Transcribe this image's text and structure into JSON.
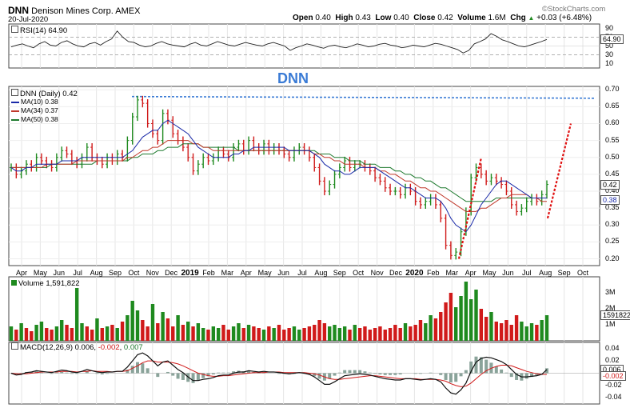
{
  "header": {
    "symbol": "DNN",
    "company": "Denison Mines Corp.",
    "exchange": "AMEX",
    "date": "20-Jul-2020",
    "open_label": "Open",
    "open": "0.40",
    "high_label": "High",
    "high": "0.43",
    "low_label": "Low",
    "low": "0.40",
    "close_label": "Close",
    "close": "0.42",
    "volume_label": "Volume",
    "volume": "1.6M",
    "chg_label": "Chg",
    "chg": "+0.03 (+6.48%)",
    "chg_icon": "up-triangle-icon",
    "brand": "©StockCharts.com"
  },
  "annotation": "DNN",
  "colors": {
    "up": "#1f8a1f",
    "down": "#d01a1a",
    "ma10": "#1a2aa8",
    "ma34": "#c0392b",
    "ma50": "#1e7a2e",
    "annotation": "#3a7bd5",
    "resistance": "#3a7bd5",
    "trendline": "#e01010"
  },
  "chart_data": [
    {
      "type": "line",
      "panel": "rsi",
      "title": "RSI(14) 64.90",
      "yticks": [
        "90",
        "70",
        "50",
        "30",
        "10"
      ],
      "ylim": [
        0,
        100
      ],
      "reference_lines": [
        70,
        30
      ],
      "last_value_label": "64.90",
      "series": [
        {
          "name": "RSI(14)",
          "values": [
            48,
            52,
            55,
            50,
            46,
            55,
            60,
            52,
            50,
            58,
            62,
            55,
            50,
            48,
            55,
            58,
            52,
            60,
            66,
            84,
            70,
            60,
            58,
            52,
            48,
            50,
            56,
            60,
            55,
            52,
            50,
            48,
            54,
            58,
            52,
            50,
            55,
            60,
            56,
            52,
            50,
            54,
            58,
            55,
            52,
            50,
            55,
            58,
            54,
            50,
            40,
            46,
            50,
            55,
            52,
            48,
            45,
            50,
            52,
            48,
            46,
            50,
            55,
            52,
            48,
            50,
            54,
            56,
            52,
            50,
            46,
            48,
            52,
            50,
            48,
            52,
            56,
            54,
            50,
            46,
            42,
            34,
            40,
            55,
            60,
            66,
            78,
            72,
            64,
            60,
            55,
            50,
            48,
            52,
            56,
            60,
            64.9
          ]
        }
      ]
    },
    {
      "type": "line",
      "panel": "price",
      "title": "DNN (Daily) 0.42",
      "yticks": [
        "0.70",
        "0.65",
        "0.60",
        "0.55",
        "0.50",
        "0.45",
        "0.40",
        "0.35",
        "0.30",
        "0.25",
        "0.20"
      ],
      "ylim": [
        0.18,
        0.71
      ],
      "last_value_labels": [
        "0.42",
        "0.38"
      ],
      "legend": [
        {
          "name": "MA(10) 0.38",
          "color": "#1a2aa8"
        },
        {
          "name": "MA(34) 0.37",
          "color": "#c0392b"
        },
        {
          "name": "MA(50) 0.38",
          "color": "#1e7a2e"
        }
      ],
      "close": [
        0.47,
        0.45,
        0.46,
        0.48,
        0.47,
        0.5,
        0.49,
        0.48,
        0.47,
        0.5,
        0.52,
        0.51,
        0.49,
        0.48,
        0.5,
        0.53,
        0.5,
        0.49,
        0.48,
        0.5,
        0.49,
        0.51,
        0.5,
        0.55,
        0.62,
        0.67,
        0.66,
        0.6,
        0.57,
        0.55,
        0.63,
        0.61,
        0.57,
        0.55,
        0.53,
        0.5,
        0.46,
        0.48,
        0.5,
        0.49,
        0.5,
        0.52,
        0.51,
        0.5,
        0.53,
        0.54,
        0.52,
        0.55,
        0.53,
        0.52,
        0.54,
        0.52,
        0.53,
        0.52,
        0.51,
        0.5,
        0.52,
        0.53,
        0.52,
        0.5,
        0.47,
        0.43,
        0.4,
        0.42,
        0.45,
        0.47,
        0.49,
        0.47,
        0.48,
        0.48,
        0.47,
        0.46,
        0.44,
        0.43,
        0.41,
        0.4,
        0.4,
        0.39,
        0.41,
        0.4,
        0.37,
        0.36,
        0.37,
        0.38,
        0.36,
        0.32,
        0.24,
        0.21,
        0.22,
        0.28,
        0.34,
        0.44,
        0.47,
        0.45,
        0.43,
        0.44,
        0.43,
        0.42,
        0.4,
        0.36,
        0.34,
        0.35,
        0.37,
        0.38,
        0.37,
        0.39,
        0.42
      ],
      "ma10": [
        0.47,
        0.46,
        0.46,
        0.47,
        0.47,
        0.48,
        0.48,
        0.48,
        0.48,
        0.48,
        0.49,
        0.49,
        0.49,
        0.49,
        0.5,
        0.5,
        0.5,
        0.5,
        0.5,
        0.5,
        0.5,
        0.5,
        0.5,
        0.51,
        0.52,
        0.54,
        0.56,
        0.57,
        0.58,
        0.58,
        0.6,
        0.61,
        0.6,
        0.59,
        0.58,
        0.57,
        0.55,
        0.53,
        0.52,
        0.51,
        0.5,
        0.5,
        0.5,
        0.5,
        0.51,
        0.51,
        0.52,
        0.52,
        0.53,
        0.53,
        0.53,
        0.53,
        0.53,
        0.53,
        0.53,
        0.52,
        0.52,
        0.52,
        0.52,
        0.52,
        0.51,
        0.5,
        0.48,
        0.47,
        0.46,
        0.46,
        0.45,
        0.45,
        0.46,
        0.47,
        0.47,
        0.47,
        0.47,
        0.46,
        0.45,
        0.44,
        0.43,
        0.42,
        0.41,
        0.41,
        0.4,
        0.39,
        0.38,
        0.38,
        0.38,
        0.37,
        0.35,
        0.32,
        0.3,
        0.29,
        0.28,
        0.3,
        0.33,
        0.36,
        0.38,
        0.4,
        0.42,
        0.43,
        0.43,
        0.42,
        0.41,
        0.4,
        0.39,
        0.38,
        0.38,
        0.38,
        0.38
      ],
      "ma34": [
        0.47,
        0.47,
        0.47,
        0.47,
        0.47,
        0.47,
        0.47,
        0.48,
        0.48,
        0.48,
        0.48,
        0.48,
        0.48,
        0.49,
        0.49,
        0.49,
        0.49,
        0.49,
        0.49,
        0.49,
        0.49,
        0.49,
        0.49,
        0.5,
        0.5,
        0.51,
        0.52,
        0.52,
        0.53,
        0.53,
        0.54,
        0.55,
        0.55,
        0.55,
        0.55,
        0.55,
        0.54,
        0.54,
        0.53,
        0.53,
        0.52,
        0.52,
        0.52,
        0.52,
        0.52,
        0.52,
        0.52,
        0.52,
        0.52,
        0.52,
        0.52,
        0.52,
        0.52,
        0.52,
        0.52,
        0.52,
        0.52,
        0.52,
        0.52,
        0.52,
        0.51,
        0.51,
        0.5,
        0.5,
        0.49,
        0.49,
        0.48,
        0.48,
        0.48,
        0.48,
        0.47,
        0.47,
        0.47,
        0.46,
        0.46,
        0.45,
        0.45,
        0.44,
        0.43,
        0.43,
        0.42,
        0.41,
        0.41,
        0.4,
        0.4,
        0.39,
        0.38,
        0.37,
        0.36,
        0.35,
        0.34,
        0.34,
        0.34,
        0.35,
        0.35,
        0.36,
        0.37,
        0.38,
        0.38,
        0.39,
        0.39,
        0.39,
        0.39,
        0.38,
        0.38,
        0.37,
        0.37
      ],
      "ma50": [
        0.47,
        0.47,
        0.47,
        0.47,
        0.47,
        0.47,
        0.47,
        0.47,
        0.48,
        0.48,
        0.48,
        0.48,
        0.48,
        0.48,
        0.48,
        0.48,
        0.48,
        0.49,
        0.49,
        0.49,
        0.49,
        0.49,
        0.49,
        0.49,
        0.5,
        0.5,
        0.51,
        0.51,
        0.51,
        0.52,
        0.52,
        0.53,
        0.53,
        0.53,
        0.54,
        0.54,
        0.54,
        0.54,
        0.53,
        0.53,
        0.53,
        0.53,
        0.53,
        0.53,
        0.53,
        0.52,
        0.52,
        0.52,
        0.52,
        0.52,
        0.52,
        0.52,
        0.52,
        0.52,
        0.52,
        0.52,
        0.52,
        0.52,
        0.52,
        0.52,
        0.52,
        0.51,
        0.51,
        0.51,
        0.5,
        0.5,
        0.5,
        0.49,
        0.49,
        0.49,
        0.48,
        0.48,
        0.48,
        0.47,
        0.47,
        0.47,
        0.46,
        0.46,
        0.45,
        0.45,
        0.44,
        0.44,
        0.43,
        0.43,
        0.42,
        0.41,
        0.41,
        0.4,
        0.39,
        0.38,
        0.37,
        0.37,
        0.37,
        0.37,
        0.37,
        0.37,
        0.38,
        0.38,
        0.38,
        0.38,
        0.38,
        0.38,
        0.38,
        0.38,
        0.38,
        0.38,
        0.38
      ],
      "resistance_level": 0.68,
      "trend_lines": [
        {
          "from": [
            0.2
          ],
          "to": [
            0.5
          ],
          "note": "rally-1"
        },
        {
          "from": [
            0.32
          ],
          "to": [
            0.6
          ],
          "note": "rally-2"
        }
      ]
    },
    {
      "type": "bar",
      "panel": "volume",
      "title": "Volume 1,591,822",
      "yticks": [
        "3M",
        "2M",
        "1M"
      ],
      "ylim": [
        0,
        4
      ],
      "last_value_label": "1591822",
      "values_millions": [
        0.9,
        0.7,
        1.1,
        0.8,
        0.6,
        1.0,
        1.2,
        0.8,
        0.7,
        0.9,
        1.3,
        1.0,
        0.8,
        3.3,
        1.1,
        0.9,
        0.7,
        1.4,
        0.8,
        0.9,
        1.0,
        0.8,
        1.2,
        1.6,
        2.5,
        1.9,
        1.3,
        0.9,
        2.3,
        1.1,
        1.8,
        1.4,
        0.9,
        1.6,
        1.0,
        1.2,
        0.9,
        1.1,
        0.8,
        0.7,
        0.9,
        0.8,
        1.0,
        0.7,
        0.9,
        1.1,
        0.8,
        1.0,
        0.9,
        0.8,
        0.7,
        0.9,
        0.8,
        1.0,
        0.7,
        0.8,
        0.9,
        0.7,
        0.8,
        0.9,
        1.0,
        1.3,
        1.1,
        0.9,
        1.0,
        0.8,
        0.9,
        0.7,
        1.0,
        0.8,
        0.9,
        0.7,
        0.8,
        0.9,
        0.7,
        0.8,
        1.0,
        0.8,
        1.1,
        0.9,
        1.0,
        1.3,
        1.1,
        1.6,
        1.4,
        1.8,
        2.4,
        3.0,
        2.1,
        2.8,
        3.7,
        2.6,
        3.2,
        2.0,
        1.5,
        1.8,
        1.2,
        1.1,
        1.3,
        1.0,
        1.6,
        1.2,
        0.9,
        1.1,
        1.0,
        1.3,
        1.6
      ],
      "up_flags": [
        1,
        0,
        1,
        0,
        0,
        1,
        1,
        0,
        0,
        1,
        1,
        0,
        0,
        1,
        1,
        0,
        0,
        1,
        0,
        1,
        0,
        1,
        0,
        1,
        1,
        1,
        0,
        0,
        1,
        0,
        1,
        0,
        0,
        1,
        0,
        1,
        0,
        1,
        1,
        0,
        1,
        1,
        0,
        0,
        1,
        1,
        0,
        1,
        0,
        0,
        1,
        0,
        1,
        0,
        0,
        0,
        1,
        1,
        0,
        0,
        0,
        0,
        0,
        1,
        1,
        1,
        1,
        0,
        1,
        0,
        0,
        0,
        0,
        0,
        0,
        0,
        0,
        0,
        1,
        0,
        0,
        0,
        1,
        1,
        0,
        0,
        0,
        0,
        1,
        1,
        1,
        1,
        1,
        0,
        0,
        1,
        0,
        0,
        0,
        0,
        0,
        1,
        1,
        1,
        0,
        1,
        1
      ]
    },
    {
      "type": "line",
      "panel": "macd",
      "title": "MACD(12,26,9) 0.006, -0.002, 0.007",
      "title_parts": [
        "MACD(12,26,9) 0.006, ",
        "-0.002",
        ", ",
        "0.007"
      ],
      "yticks": [
        "0.04",
        "0.02",
        "0.00",
        "-0.02",
        "-0.04"
      ],
      "ylim": [
        -0.05,
        0.05
      ],
      "last_value_labels": [
        "0.006",
        "-0.002"
      ],
      "macd": [
        0.0,
        -0.003,
        -0.002,
        0.001,
        0.002,
        0.004,
        0.003,
        0.002,
        0.001,
        0.003,
        0.005,
        0.004,
        0.002,
        0.001,
        0.003,
        0.006,
        0.004,
        0.002,
        0.001,
        0.002,
        0.002,
        0.003,
        0.003,
        0.01,
        0.02,
        0.03,
        0.033,
        0.028,
        0.02,
        0.012,
        0.018,
        0.02,
        0.013,
        0.006,
        0.001,
        -0.006,
        -0.012,
        -0.012,
        -0.01,
        -0.009,
        -0.007,
        -0.004,
        -0.003,
        -0.003,
        0.0,
        0.002,
        0.002,
        0.004,
        0.003,
        0.002,
        0.003,
        0.002,
        0.002,
        0.001,
        0.0,
        -0.001,
        0.0,
        0.001,
        0.0,
        -0.002,
        -0.006,
        -0.012,
        -0.018,
        -0.018,
        -0.014,
        -0.009,
        -0.004,
        -0.003,
        -0.002,
        -0.001,
        -0.002,
        -0.003,
        -0.005,
        -0.007,
        -0.009,
        -0.01,
        -0.011,
        -0.011,
        -0.009,
        -0.009,
        -0.01,
        -0.011,
        -0.01,
        -0.009,
        -0.01,
        -0.014,
        -0.024,
        -0.032,
        -0.034,
        -0.027,
        -0.016,
        0.003,
        0.018,
        0.024,
        0.026,
        0.025,
        0.022,
        0.019,
        0.014,
        0.006,
        -0.002,
        -0.006,
        -0.006,
        -0.005,
        -0.004,
        -0.002,
        0.006
      ],
      "signal": [
        0.0,
        -0.001,
        -0.001,
        -0.001,
        0.0,
        0.001,
        0.002,
        0.002,
        0.002,
        0.002,
        0.003,
        0.003,
        0.003,
        0.002,
        0.003,
        0.003,
        0.004,
        0.003,
        0.003,
        0.003,
        0.002,
        0.003,
        0.003,
        0.004,
        0.008,
        0.012,
        0.017,
        0.02,
        0.02,
        0.018,
        0.018,
        0.018,
        0.017,
        0.015,
        0.012,
        0.008,
        0.004,
        0.0,
        -0.002,
        -0.004,
        -0.005,
        -0.005,
        -0.004,
        -0.004,
        -0.003,
        -0.002,
        -0.001,
        0.0,
        0.001,
        0.001,
        0.001,
        0.002,
        0.002,
        0.002,
        0.001,
        0.001,
        0.001,
        0.001,
        0.001,
        0.0,
        -0.001,
        -0.003,
        -0.006,
        -0.009,
        -0.01,
        -0.01,
        -0.009,
        -0.008,
        -0.007,
        -0.006,
        -0.005,
        -0.004,
        -0.004,
        -0.005,
        -0.006,
        -0.007,
        -0.008,
        -0.009,
        -0.009,
        -0.009,
        -0.009,
        -0.01,
        -0.01,
        -0.01,
        -0.01,
        -0.011,
        -0.013,
        -0.017,
        -0.02,
        -0.022,
        -0.021,
        -0.016,
        -0.009,
        -0.002,
        0.004,
        0.008,
        0.011,
        0.013,
        0.013,
        0.012,
        0.009,
        0.006,
        0.003,
        0.001,
        -0.001,
        -0.002,
        -0.002
      ]
    }
  ],
  "x_axis": {
    "labels": [
      "Apr",
      "May",
      "Jun",
      "Jul",
      "Aug",
      "Sep",
      "Oct",
      "Nov",
      "Dec",
      "2019",
      "Feb",
      "Mar",
      "Apr",
      "May",
      "Jun",
      "Jul",
      "Aug",
      "Sep",
      "Oct",
      "Nov",
      "Dec",
      "2020",
      "Feb",
      "Mar",
      "Apr",
      "May",
      "Jun",
      "Jul",
      "Aug",
      "Sep",
      "Oct"
    ],
    "year_flags": [
      0,
      0,
      0,
      0,
      0,
      0,
      0,
      0,
      0,
      1,
      0,
      0,
      0,
      0,
      0,
      0,
      0,
      0,
      0,
      0,
      0,
      1,
      0,
      0,
      0,
      0,
      0,
      0,
      0,
      0,
      0
    ]
  }
}
